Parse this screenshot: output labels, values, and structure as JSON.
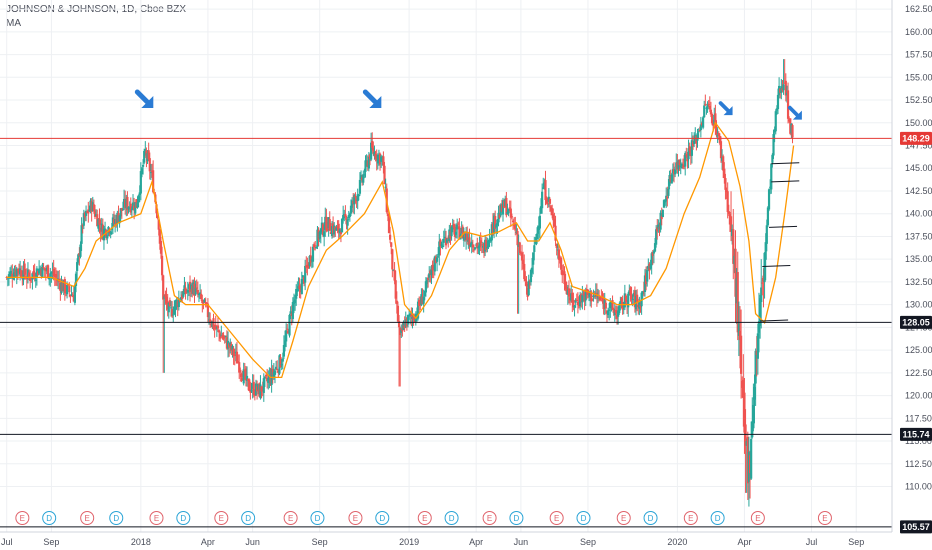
{
  "header": {
    "symbol": "JOHNSON & JOHNSON, 1D, Cboe BZX",
    "indicator": "MA"
  },
  "chart_data": {
    "type": "candlestick",
    "title": "JOHNSON & JOHNSON, 1D, Cboe BZX",
    "indicators": [
      "MA"
    ],
    "y_ticks": [
      110.0,
      112.5,
      115.0,
      117.5,
      120.0,
      122.5,
      125.0,
      127.5,
      130.0,
      132.5,
      135.0,
      137.5,
      140.0,
      142.5,
      145.0,
      147.5,
      150.0,
      152.5,
      155.0,
      157.5,
      160.0,
      162.5
    ],
    "y_tick_labels": [
      "110.00",
      "112.50",
      "115.00",
      "117.50",
      "120.00",
      "122.50",
      "125.00",
      "127.50",
      "130.00",
      "132.50",
      "135.00",
      "137.50",
      "140.00",
      "142.50",
      "145.00",
      "147.50",
      "150.00",
      "152.50",
      "155.00",
      "157.50",
      "160.00",
      "162.50"
    ],
    "ylim": [
      105.0,
      163.5
    ],
    "x_ticks": [
      {
        "label": "Jul",
        "t": 0
      },
      {
        "label": "Sep",
        "t": 2
      },
      {
        "label": "2018",
        "t": 6
      },
      {
        "label": "Apr",
        "t": 9
      },
      {
        "label": "Jun",
        "t": 11
      },
      {
        "label": "Sep",
        "t": 14
      },
      {
        "label": "2019",
        "t": 18
      },
      {
        "label": "Apr",
        "t": 21
      },
      {
        "label": "Jun",
        "t": 23
      },
      {
        "label": "Sep",
        "t": 26
      },
      {
        "label": "2020",
        "t": 30
      },
      {
        "label": "Apr",
        "t": 33
      },
      {
        "label": "Jul",
        "t": 36
      },
      {
        "label": "Sep",
        "t": 38
      }
    ],
    "x_range_months": [
      -0.3,
      39.6
    ],
    "price_points": [
      [
        0,
        133
      ],
      [
        0.5,
        134
      ],
      [
        1,
        133
      ],
      [
        1.5,
        134
      ],
      [
        2,
        133.5
      ],
      [
        2.5,
        132
      ],
      [
        3,
        131
      ],
      [
        3.4,
        139
      ],
      [
        3.8,
        141
      ],
      [
        4.3,
        138
      ],
      [
        4.8,
        139
      ],
      [
        5.3,
        141
      ],
      [
        5.8,
        141
      ],
      [
        6.2,
        146.8
      ],
      [
        6.5,
        144
      ],
      [
        6.8,
        139
      ],
      [
        7,
        131
      ],
      [
        7.3,
        129
      ],
      [
        7.8,
        131
      ],
      [
        8.3,
        132
      ],
      [
        8.8,
        130
      ],
      [
        9.3,
        127.5
      ],
      [
        9.8,
        126
      ],
      [
        10.3,
        124
      ],
      [
        10.8,
        121
      ],
      [
        11.3,
        120.5
      ],
      [
        11.8,
        122
      ],
      [
        12.3,
        124
      ],
      [
        12.8,
        130
      ],
      [
        13.3,
        133
      ],
      [
        13.8,
        137
      ],
      [
        14.3,
        139
      ],
      [
        14.8,
        138
      ],
      [
        15.3,
        140
      ],
      [
        15.8,
        143
      ],
      [
        16.3,
        147
      ],
      [
        16.8,
        146
      ],
      [
        17.3,
        133
      ],
      [
        17.6,
        126
      ],
      [
        17.8,
        128
      ],
      [
        18.3,
        129
      ],
      [
        18.8,
        132
      ],
      [
        19.3,
        136
      ],
      [
        19.8,
        138
      ],
      [
        20.3,
        138
      ],
      [
        20.8,
        137
      ],
      [
        21.3,
        136
      ],
      [
        21.8,
        139
      ],
      [
        22.3,
        141
      ],
      [
        22.8,
        138
      ],
      [
        23.3,
        131
      ],
      [
        23.6,
        136
      ],
      [
        24,
        143
      ],
      [
        24.3,
        141
      ],
      [
        24.8,
        134
      ],
      [
        25.3,
        130
      ],
      [
        25.8,
        131
      ],
      [
        26.3,
        131
      ],
      [
        26.8,
        130
      ],
      [
        27.3,
        129
      ],
      [
        27.8,
        131
      ],
      [
        28.3,
        130
      ],
      [
        28.8,
        135
      ],
      [
        29.3,
        140
      ],
      [
        29.8,
        145
      ],
      [
        30.3,
        146
      ],
      [
        30.8,
        148
      ],
      [
        31.3,
        152
      ],
      [
        31.7,
        150
      ],
      [
        32,
        146
      ],
      [
        32.3,
        140
      ],
      [
        32.6,
        133
      ],
      [
        32.8,
        124
      ],
      [
        33,
        115
      ],
      [
        33.2,
        112
      ],
      [
        33.5,
        124
      ],
      [
        33.8,
        132
      ],
      [
        34.1,
        142
      ],
      [
        34.3,
        148
      ],
      [
        34.5,
        153
      ],
      [
        34.8,
        155
      ],
      [
        35,
        150
      ],
      [
        35.2,
        148.3
      ]
    ],
    "moving_average": [
      [
        0,
        133
      ],
      [
        1,
        133
      ],
      [
        2,
        133
      ],
      [
        3,
        132
      ],
      [
        3.5,
        134
      ],
      [
        4,
        137
      ],
      [
        5,
        139
      ],
      [
        6,
        140
      ],
      [
        6.5,
        143.5
      ],
      [
        7,
        137
      ],
      [
        7.5,
        131
      ],
      [
        8,
        130
      ],
      [
        9,
        130
      ],
      [
        10,
        127
      ],
      [
        11,
        124
      ],
      [
        11.8,
        122
      ],
      [
        12.3,
        122
      ],
      [
        12.8,
        126
      ],
      [
        13.5,
        132
      ],
      [
        14.3,
        136
      ],
      [
        15,
        137.5
      ],
      [
        16,
        140
      ],
      [
        16.8,
        143.5
      ],
      [
        17.3,
        138
      ],
      [
        17.8,
        130
      ],
      [
        18.3,
        128.5
      ],
      [
        19,
        131
      ],
      [
        19.8,
        136
      ],
      [
        20.5,
        138
      ],
      [
        21.3,
        137.5
      ],
      [
        22,
        138
      ],
      [
        22.8,
        139
      ],
      [
        23.3,
        137
      ],
      [
        23.8,
        137
      ],
      [
        24.3,
        139
      ],
      [
        24.8,
        136
      ],
      [
        25.3,
        132
      ],
      [
        26.5,
        131
      ],
      [
        27.3,
        130
      ],
      [
        28,
        130
      ],
      [
        28.8,
        131
      ],
      [
        29.5,
        134
      ],
      [
        30.3,
        140
      ],
      [
        31,
        144
      ],
      [
        31.7,
        150
      ],
      [
        32.3,
        148
      ],
      [
        32.8,
        143
      ],
      [
        33.2,
        137
      ],
      [
        33.5,
        129
      ],
      [
        33.9,
        128
      ],
      [
        34.4,
        133
      ],
      [
        34.8,
        140
      ],
      [
        35.2,
        147.5
      ]
    ],
    "horizontal_levels": [
      {
        "value": 148.29,
        "label": "148.29",
        "color": "#e53935"
      },
      {
        "value": 128.05,
        "label": "128.05",
        "color": "#131722"
      },
      {
        "value": 115.74,
        "label": "115.74",
        "color": "#131722"
      },
      {
        "value": 105.57,
        "label": "105.57",
        "color": "#131722"
      }
    ],
    "annotations": {
      "arrows": [
        {
          "t": 6.2,
          "price": 152.5
        },
        {
          "t": 16.4,
          "price": 152.5
        },
        {
          "t": 32.2,
          "price": 151.5
        },
        {
          "t": 35.3,
          "price": 151
        }
      ],
      "target_ticks": [
        {
          "t": 34.2,
          "price": 145.5
        },
        {
          "t": 34.2,
          "price": 143.5
        },
        {
          "t": 34.1,
          "price": 138.5
        },
        {
          "t": 33.8,
          "price": 134.2
        },
        {
          "t": 33.7,
          "price": 128.2
        }
      ]
    },
    "events": [
      {
        "type": "E",
        "t": 0.7
      },
      {
        "type": "D",
        "t": 1.9
      },
      {
        "type": "E",
        "t": 3.6
      },
      {
        "type": "D",
        "t": 4.9
      },
      {
        "type": "E",
        "t": 6.7
      },
      {
        "type": "D",
        "t": 7.9
      },
      {
        "type": "E",
        "t": 9.6
      },
      {
        "type": "D",
        "t": 10.8
      },
      {
        "type": "E",
        "t": 12.7
      },
      {
        "type": "D",
        "t": 13.9
      },
      {
        "type": "E",
        "t": 15.6
      },
      {
        "type": "D",
        "t": 16.8
      },
      {
        "type": "E",
        "t": 18.7
      },
      {
        "type": "D",
        "t": 19.9
      },
      {
        "type": "E",
        "t": 21.6
      },
      {
        "type": "D",
        "t": 22.8
      },
      {
        "type": "E",
        "t": 24.6
      },
      {
        "type": "D",
        "t": 25.8
      },
      {
        "type": "E",
        "t": 27.6
      },
      {
        "type": "D",
        "t": 28.8
      },
      {
        "type": "E",
        "t": 30.6
      },
      {
        "type": "D",
        "t": 31.8
      },
      {
        "type": "E",
        "t": 33.6
      },
      {
        "type": "E",
        "t": 36.6
      }
    ],
    "grid": true,
    "price_scale": "right"
  },
  "colors": {
    "up": "#26a69a",
    "down": "#ef5350",
    "ma": "#ff9800",
    "arrow": "#2a7bd4",
    "grid": "#eef0f3",
    "event_e": "#e0636b",
    "event_d": "#2aa4d6",
    "last_price_bg": "#e53935",
    "level_bg": "#131722"
  }
}
